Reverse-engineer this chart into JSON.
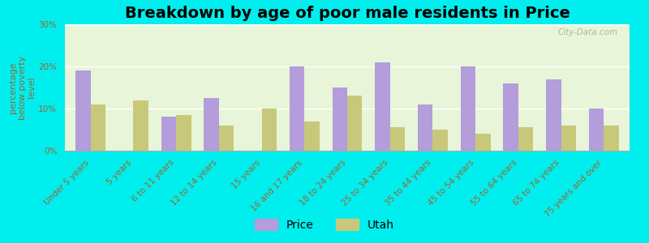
{
  "title": "Breakdown by age of poor male residents in Price",
  "ylabel": "percentage\nbelow poverty\nlevel",
  "categories": [
    "Under 5 years",
    "5 years",
    "6 to 11 years",
    "12 to 14 years",
    "15 years",
    "16 and 17 years",
    "18 to 24 years",
    "25 to 34 years",
    "35 to 44 years",
    "45 to 54 years",
    "55 to 64 years",
    "65 to 74 years",
    "75 years and over"
  ],
  "price_values": [
    19.0,
    0.0,
    8.0,
    12.5,
    0.0,
    20.0,
    15.0,
    21.0,
    11.0,
    20.0,
    16.0,
    17.0,
    10.0
  ],
  "utah_values": [
    11.0,
    12.0,
    8.5,
    6.0,
    10.0,
    7.0,
    13.0,
    5.5,
    5.0,
    4.0,
    5.5,
    6.0,
    6.0
  ],
  "price_color": "#b39ddb",
  "utah_color": "#c8c87a",
  "background_color": "#e8f5d8",
  "outer_background": "#00eeee",
  "ylim": [
    0,
    30
  ],
  "yticks": [
    0,
    10,
    20,
    30
  ],
  "ytick_labels": [
    "0%",
    "10%",
    "20%",
    "30%"
  ],
  "title_fontsize": 14,
  "axis_label_fontsize": 8,
  "tick_fontsize": 7.5,
  "legend_labels": [
    "Price",
    "Utah"
  ],
  "watermark": "City-Data.com"
}
